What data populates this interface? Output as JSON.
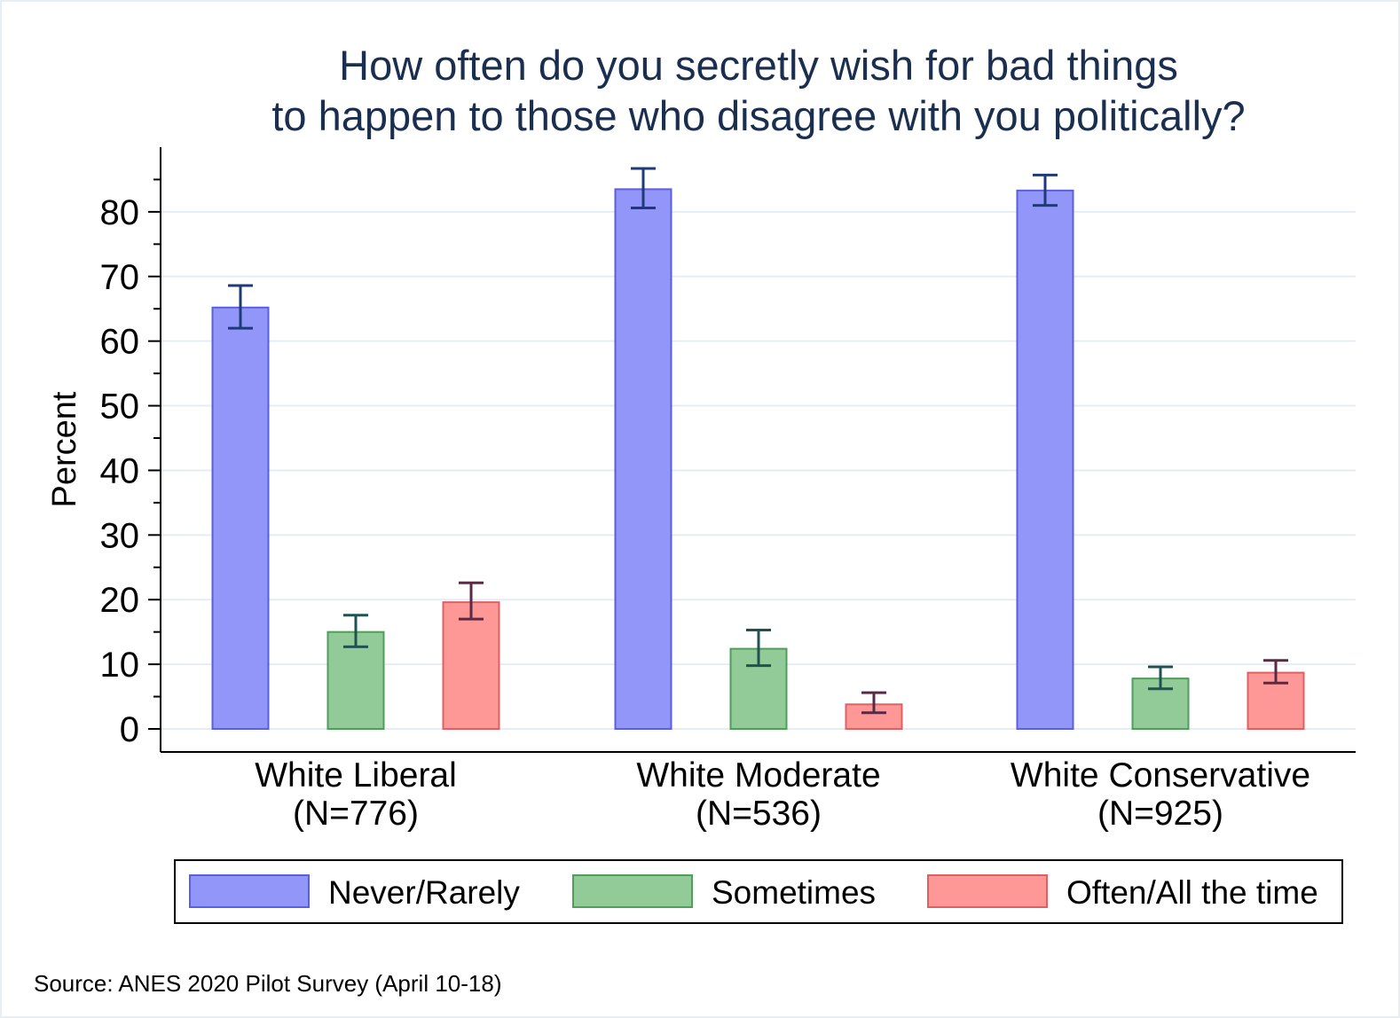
{
  "chart_data": {
    "type": "bar",
    "title": [
      "How often do you secretly wish for bad things",
      "to happen to those who disagree with you politically?"
    ],
    "ylabel": "Percent",
    "xlabel": "",
    "ylim": [
      0,
      90
    ],
    "yticks": [
      0,
      10,
      20,
      30,
      40,
      50,
      60,
      70,
      80
    ],
    "grid": true,
    "legend_position": "bottom",
    "categories": [
      [
        "White Liberal",
        "(N=776)"
      ],
      [
        "White Moderate",
        "(N=536)"
      ],
      [
        "White Conservative",
        "(N=925)"
      ]
    ],
    "series": [
      {
        "name": "Never/Rarely",
        "values": [
          65.2,
          83.5,
          83.3
        ],
        "ci_low": [
          62.0,
          80.6,
          81.0
        ],
        "ci_high": [
          68.6,
          86.7,
          85.7
        ],
        "fill": "#9396f9",
        "stroke": "#5a5fe0",
        "error_color": "#1f3a78"
      },
      {
        "name": "Sometimes",
        "values": [
          15.0,
          12.4,
          7.8
        ],
        "ci_low": [
          12.7,
          9.8,
          6.2
        ],
        "ci_high": [
          17.6,
          15.3,
          9.6
        ],
        "fill": "#92cb98",
        "stroke": "#4f9e5a",
        "error_color": "#1f5250"
      },
      {
        "name": "Often/All the time",
        "values": [
          19.6,
          3.8,
          8.7
        ],
        "ci_low": [
          17.0,
          2.5,
          7.1
        ],
        "ci_high": [
          22.6,
          5.6,
          10.6
        ],
        "fill": "#fd9897",
        "stroke": "#e05f63",
        "error_color": "#5a2a44"
      }
    ]
  },
  "source_note": "Source: ANES 2020 Pilot Survey (April 10-18)"
}
